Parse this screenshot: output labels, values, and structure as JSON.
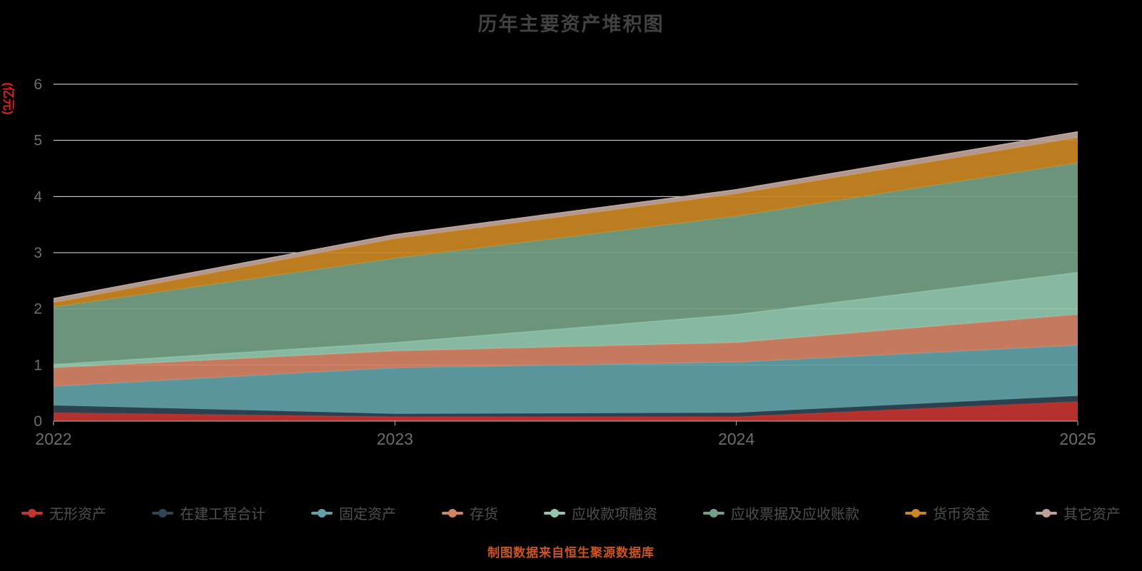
{
  "page": {
    "background": "#000000"
  },
  "chart_data": {
    "type": "area",
    "stacked": true,
    "title": "历年主要资产堆积图",
    "y_axis_unit": "(亿元)",
    "unit_color": "#e01f1f",
    "x_labels": [
      "2022",
      "2023",
      "2024",
      "2025"
    ],
    "ylim": [
      0,
      6
    ],
    "yticks": [
      0,
      1,
      2,
      3,
      4,
      5,
      6
    ],
    "grid": true,
    "legend_position": "bottom",
    "series": [
      {
        "name": "无形资产",
        "color": "#c23531",
        "values": [
          0.15,
          0.08,
          0.08,
          0.35
        ]
      },
      {
        "name": "在建工程合计",
        "color": "#2f4554",
        "values": [
          0.13,
          0.05,
          0.07,
          0.1
        ]
      },
      {
        "name": "固定资产",
        "color": "#61a0a8",
        "values": [
          0.34,
          0.82,
          0.9,
          0.9
        ]
      },
      {
        "name": "存货",
        "color": "#d48265",
        "values": [
          0.33,
          0.3,
          0.35,
          0.55
        ]
      },
      {
        "name": "应收款项融资",
        "color": "#91c7ae",
        "values": [
          0.06,
          0.15,
          0.5,
          0.75
        ]
      },
      {
        "name": "应收票据及应收账款",
        "color": "#749f83",
        "values": [
          1.02,
          1.5,
          1.75,
          1.95
        ]
      },
      {
        "name": "货币资金",
        "color": "#ca8622",
        "values": [
          0.08,
          0.35,
          0.4,
          0.45
        ]
      },
      {
        "name": "其它资产",
        "color": "#bda29a",
        "values": [
          0.07,
          0.07,
          0.07,
          0.1
        ]
      }
    ],
    "footer_note": "制图数据来自恒生聚源数据库",
    "footer_color": "#cc5522"
  }
}
